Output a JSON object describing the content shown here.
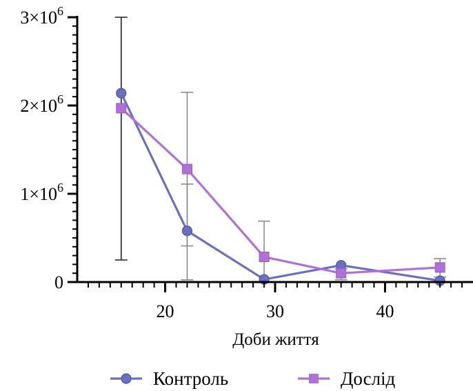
{
  "chart_data": {
    "type": "line",
    "title": "",
    "xlabel": "Доби життя",
    "ylabel": "",
    "xlim": [
      12,
      48
    ],
    "ylim": [
      0,
      3000000
    ],
    "x_ticks": [
      20,
      30,
      40
    ],
    "x_tick_labels": [
      "20",
      "30",
      "40"
    ],
    "y_ticks": [
      0,
      1000000,
      2000000,
      3000000
    ],
    "y_tick_labels": [
      {
        "base": "0",
        "exp": ""
      },
      {
        "base": "1×10",
        "exp": "6"
      },
      {
        "base": "2×10",
        "exp": "6"
      },
      {
        "base": "3×10",
        "exp": "6"
      }
    ],
    "grid": false,
    "legend_position": "bottom",
    "series": [
      {
        "name": "Контроль",
        "marker": "circle",
        "color": "#6a6fc0",
        "x": [
          16,
          22,
          29,
          36,
          45
        ],
        "y": [
          2140000,
          580000,
          30000,
          190000,
          15000
        ],
        "err_low": [
          250000,
          410000,
          0,
          0,
          0
        ],
        "err_high": [
          3000000,
          1110000,
          0,
          0,
          0
        ]
      },
      {
        "name": "Дослід",
        "marker": "square",
        "color": "#b070d8",
        "x": [
          16,
          22,
          29,
          36,
          45
        ],
        "y": [
          1970000,
          1280000,
          285000,
          100000,
          165000
        ],
        "err_low": [
          0,
          25000,
          0,
          25000,
          55000
        ],
        "err_high": [
          0,
          2150000,
          690000,
          150000,
          265000
        ]
      }
    ]
  }
}
